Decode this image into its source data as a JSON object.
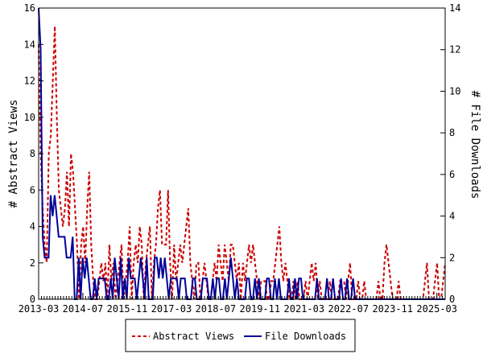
{
  "chart_data": {
    "type": "line",
    "ylabel_left": "# Abstract Views",
    "ylabel_right": "# File Downloads",
    "ylim_left": [
      0,
      16
    ],
    "ylim_right": [
      0,
      14
    ],
    "yticks_left": [
      "0",
      "2",
      "4",
      "6",
      "8",
      "10",
      "12",
      "14",
      "16"
    ],
    "yticks_right": [
      "0",
      "2",
      "4",
      "6",
      "8",
      "10",
      "12",
      "14"
    ],
    "x_start": "2013-03",
    "x_end": "2025-06",
    "xtick_labels": [
      "2013-03",
      "2014-07",
      "2015-11",
      "2017-03",
      "2018-07",
      "2019-11",
      "2021-03",
      "2022-07",
      "2023-11",
      "2025-03"
    ],
    "legend_position": "bottom",
    "grid": false,
    "series": [
      {
        "name": "Abstract Views",
        "axis": "left",
        "color": "#cc0000",
        "style": "dashed",
        "values": [
          14,
          8,
          5,
          3,
          2,
          8,
          9,
          12,
          15,
          10,
          6,
          5,
          4,
          5,
          7,
          4,
          8,
          7,
          5,
          3,
          0,
          3,
          4,
          2,
          5,
          7,
          3,
          1,
          0,
          0,
          1,
          2,
          1,
          2,
          0,
          3,
          1,
          2,
          0,
          1,
          2,
          3,
          0,
          1,
          2,
          4,
          0,
          2,
          3,
          2,
          4,
          3,
          0,
          2,
          3,
          4,
          0,
          2,
          3,
          5,
          6,
          3,
          3,
          3,
          6,
          2,
          0,
          3,
          1,
          2,
          3,
          2,
          3,
          4,
          5,
          2,
          1,
          0,
          2,
          2,
          0,
          1,
          2,
          1,
          0,
          0,
          1,
          2,
          1,
          3,
          2,
          1,
          3,
          2,
          1,
          3,
          3,
          2,
          1,
          2,
          0,
          2,
          1,
          2,
          3,
          2,
          3,
          2,
          1,
          0,
          1,
          1,
          1,
          0,
          0,
          1,
          1,
          2,
          3,
          4,
          2,
          1,
          2,
          1,
          0,
          0,
          1,
          0,
          1,
          0,
          0,
          0,
          1,
          0,
          1,
          2,
          1,
          2,
          0,
          1,
          0,
          0,
          0,
          0,
          1,
          0,
          0,
          0,
          0,
          1,
          1,
          1,
          0,
          1,
          2,
          0,
          0,
          0,
          1,
          0,
          0,
          1,
          0,
          0,
          0,
          0,
          0,
          0,
          1,
          0,
          0,
          2,
          3,
          2,
          1,
          0,
          0,
          0,
          1,
          0,
          0,
          0,
          0,
          0,
          0,
          0,
          0,
          0,
          0,
          0,
          0,
          1,
          2,
          0,
          0,
          0,
          1,
          2,
          0,
          0,
          1,
          2
        ]
      },
      {
        "name": "File Downloads",
        "axis": "right",
        "color": "#000099",
        "style": "solid",
        "values": [
          14,
          12,
          3,
          2,
          2,
          2,
          5,
          4,
          5,
          4,
          3,
          3,
          3,
          3,
          2,
          2,
          2,
          3,
          0,
          0,
          2,
          0,
          2,
          1,
          2,
          1,
          0,
          0,
          1,
          0,
          1,
          1,
          1,
          1,
          0,
          0,
          1,
          0,
          2,
          1,
          0,
          2,
          0,
          1,
          0,
          2,
          1,
          1,
          1,
          0,
          1,
          2,
          1,
          0,
          2,
          0,
          0,
          0,
          2,
          2,
          1,
          2,
          1,
          2,
          1,
          0,
          1,
          1,
          1,
          1,
          0,
          1,
          1,
          1,
          0,
          0,
          0,
          1,
          1,
          0,
          0,
          0,
          1,
          1,
          1,
          0,
          0,
          1,
          0,
          1,
          1,
          0,
          0,
          1,
          0,
          1,
          2,
          1,
          0,
          1,
          0,
          0,
          0,
          0,
          1,
          1,
          0,
          0,
          1,
          0,
          1,
          0,
          0,
          0,
          1,
          1,
          0,
          0,
          1,
          0,
          1,
          0,
          0,
          0,
          0,
          1,
          0,
          0,
          1,
          0,
          1,
          1,
          0,
          0,
          0,
          0,
          0,
          0,
          0,
          1,
          0,
          0,
          0,
          0,
          1,
          0,
          0,
          1,
          0,
          0,
          0,
          1,
          0,
          0,
          1,
          0,
          0,
          1,
          0,
          0,
          0,
          0,
          0,
          0,
          0,
          0,
          0,
          0,
          0,
          0,
          0,
          0,
          0,
          0,
          0,
          0,
          0,
          0,
          0,
          0,
          0,
          0,
          0,
          0,
          0,
          0,
          0,
          0,
          0,
          0,
          0,
          0,
          0,
          0,
          0,
          0,
          0,
          0,
          0,
          0,
          0,
          0,
          0,
          0
        ]
      }
    ]
  }
}
